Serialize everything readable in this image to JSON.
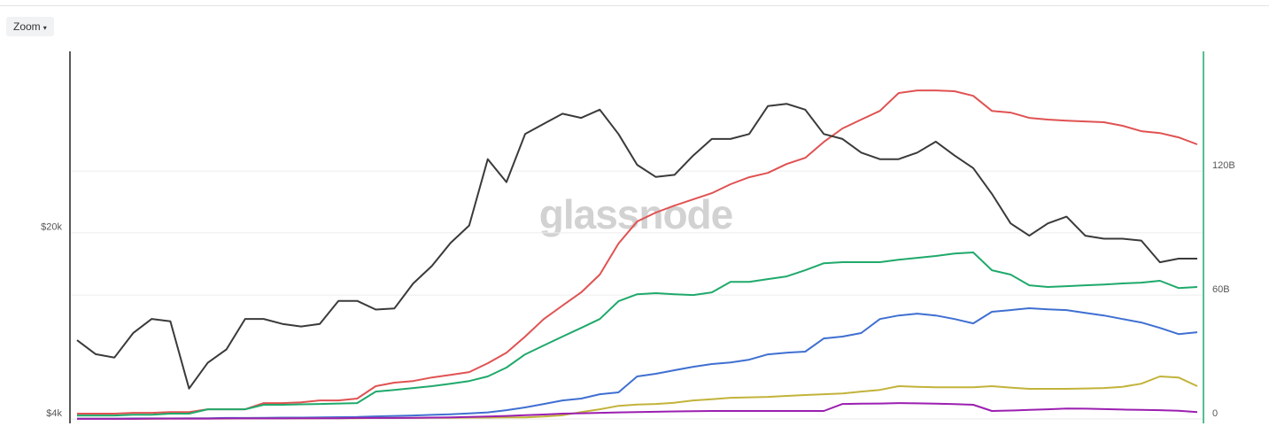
{
  "toolbar": {
    "zoom_label": "Zoom"
  },
  "watermark": "glassnode",
  "chart_data": {
    "type": "line",
    "yscale": "log",
    "ylim": [
      3850,
      96000
    ],
    "yticks": [
      {
        "value": 4000,
        "label": "$4k"
      },
      {
        "value": 20000,
        "label": "$20k"
      }
    ],
    "y2lim": [
      -2.1,
      177.9
    ],
    "y2ticks": [
      0,
      {
        "value": 60,
        "label": "60B"
      },
      {
        "value": 120,
        "label": "120B"
      }
    ],
    "grid": true,
    "series": [
      {
        "color": "#e05252",
        "axis": "y2",
        "values": [
          2.6,
          2.6,
          2.6,
          3.0,
          3.0,
          3.4,
          3.4,
          4.7,
          4.7,
          4.7,
          7.7,
          7.7,
          8.1,
          9.0,
          9.0,
          9.9,
          15.9,
          17.6,
          18.4,
          20.1,
          21.4,
          22.7,
          27.0,
          32.1,
          39.9,
          48.4,
          54.9,
          61.3,
          69.9,
          84.9,
          95.6,
          99.9,
          103.3,
          106.3,
          109.3,
          113.6,
          117.0,
          119.1,
          123.4,
          126.4,
          134.1,
          140.6,
          144.9,
          149.1,
          157.7,
          159.0,
          159.0,
          158.6,
          156.4,
          149.1,
          148.3,
          145.7,
          144.9,
          144.4,
          144.0,
          143.6,
          141.9,
          139.3,
          138.4,
          136.3,
          132.9
        ]
      },
      {
        "color": "#1fa96b",
        "axis": "y2",
        "values": [
          1.7,
          1.7,
          1.7,
          2.1,
          2.1,
          2.6,
          2.6,
          4.7,
          4.7,
          4.7,
          6.9,
          6.9,
          7.1,
          7.3,
          7.5,
          7.7,
          13.3,
          14.1,
          15.0,
          15.9,
          17.1,
          18.4,
          20.6,
          24.9,
          31.3,
          35.6,
          39.9,
          44.1,
          48.4,
          57.0,
          60.4,
          60.9,
          60.4,
          60.0,
          61.3,
          66.4,
          66.4,
          67.7,
          69.0,
          72.0,
          75.4,
          75.9,
          75.9,
          75.9,
          77.1,
          78.0,
          78.9,
          80.1,
          80.6,
          72.0,
          69.9,
          64.7,
          63.9,
          64.3,
          64.7,
          65.1,
          65.6,
          66.0,
          66.9,
          63.4,
          63.9
        ]
      },
      {
        "color": "#3f6fd1",
        "axis": "y2",
        "values": [
          0.2,
          0.2,
          0.2,
          0.3,
          0.3,
          0.3,
          0.4,
          0.4,
          0.5,
          0.5,
          0.6,
          0.7,
          0.7,
          0.8,
          0.9,
          1.0,
          1.3,
          1.5,
          1.7,
          2.0,
          2.3,
          2.7,
          3.2,
          4.3,
          5.6,
          7.3,
          9.0,
          9.9,
          12.0,
          12.9,
          20.6,
          21.9,
          23.6,
          25.3,
          26.6,
          27.4,
          28.7,
          31.3,
          32.1,
          32.6,
          39.0,
          39.9,
          41.6,
          48.4,
          50.1,
          51.0,
          50.1,
          48.4,
          46.3,
          51.9,
          52.7,
          53.6,
          53.1,
          52.7,
          51.4,
          50.1,
          48.4,
          46.7,
          44.1,
          41.1,
          42.0
        ]
      },
      {
        "color": "#c2b33a",
        "axis": "y2",
        "values": [
          0.1,
          0.1,
          0.1,
          0.1,
          0.1,
          0.2,
          0.2,
          0.2,
          0.2,
          0.3,
          0.3,
          0.3,
          0.3,
          0.4,
          0.4,
          0.4,
          0.5,
          0.5,
          0.5,
          0.6,
          0.6,
          0.7,
          0.7,
          0.8,
          0.8,
          1.2,
          1.8,
          3.4,
          4.7,
          6.4,
          7.0,
          7.3,
          7.9,
          9.0,
          9.6,
          10.3,
          10.5,
          10.7,
          11.2,
          11.6,
          12.0,
          12.4,
          13.3,
          14.1,
          15.9,
          15.6,
          15.4,
          15.4,
          15.4,
          15.9,
          15.2,
          14.6,
          14.6,
          14.6,
          14.8,
          15.0,
          15.6,
          17.1,
          20.6,
          20.1,
          15.9
        ]
      },
      {
        "color": "#9b1fb0",
        "axis": "y2",
        "values": [
          0.1,
          0.1,
          0.1,
          0.1,
          0.2,
          0.2,
          0.2,
          0.2,
          0.3,
          0.3,
          0.3,
          0.3,
          0.4,
          0.4,
          0.4,
          0.5,
          0.5,
          0.5,
          0.6,
          0.7,
          0.8,
          1.0,
          1.2,
          1.5,
          1.9,
          2.2,
          2.6,
          2.8,
          3.0,
          3.2,
          3.4,
          3.5,
          3.7,
          3.8,
          3.9,
          3.9,
          3.9,
          3.9,
          3.9,
          3.9,
          3.9,
          7.3,
          7.4,
          7.5,
          7.7,
          7.6,
          7.4,
          7.2,
          6.9,
          3.9,
          4.1,
          4.4,
          4.7,
          5.1,
          5.0,
          4.8,
          4.6,
          4.4,
          4.3,
          4.0,
          3.4
        ]
      },
      {
        "color": "#3a3a3a",
        "axis": "y",
        "values": [
          7900,
          7000,
          6800,
          8400,
          9500,
          9300,
          5200,
          6500,
          7300,
          9500,
          9500,
          9100,
          8900,
          9100,
          11100,
          11100,
          10300,
          10400,
          12900,
          15000,
          18300,
          21300,
          37800,
          31000,
          47000,
          51300,
          56000,
          54000,
          58000,
          47000,
          36000,
          32400,
          33000,
          39000,
          45000,
          45000,
          47000,
          59800,
          61000,
          58000,
          47000,
          45000,
          40000,
          37800,
          37800,
          40000,
          44000,
          39000,
          35000,
          28000,
          21700,
          19500,
          21700,
          23000,
          19500,
          19000,
          19000,
          18700,
          15500,
          16000,
          16000
        ]
      }
    ]
  }
}
